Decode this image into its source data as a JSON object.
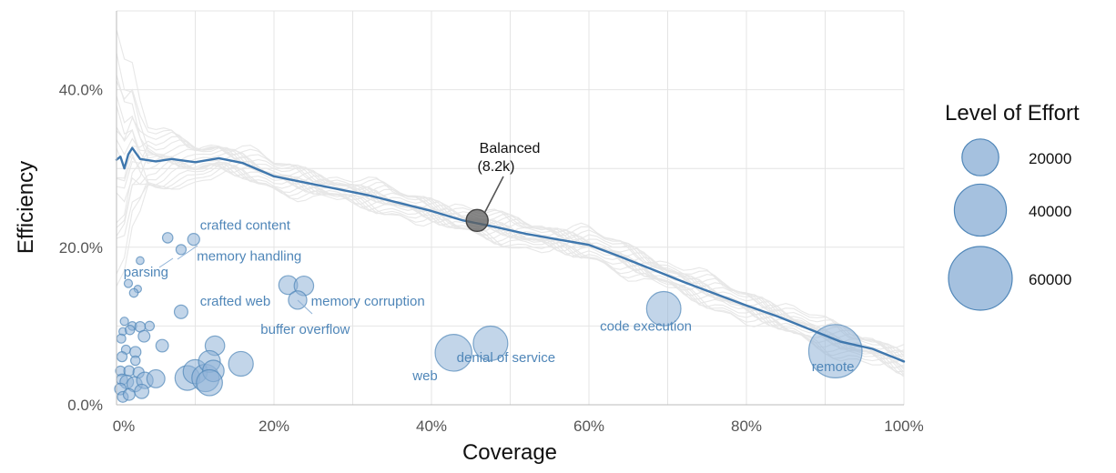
{
  "chart_data": {
    "type": "scatter",
    "title": "",
    "xlabel": "Coverage",
    "ylabel": "Efficiency",
    "xlim": [
      0,
      100
    ],
    "ylim": [
      0,
      50
    ],
    "x_ticks": [
      {
        "value": 0,
        "label": "0%"
      },
      {
        "value": 20,
        "label": "20%"
      },
      {
        "value": 40,
        "label": "40%"
      },
      {
        "value": 60,
        "label": "60%"
      },
      {
        "value": 80,
        "label": "80%"
      },
      {
        "value": 100,
        "label": "100%"
      }
    ],
    "y_ticks": [
      {
        "value": 0,
        "label": "0.0%"
      },
      {
        "value": 20,
        "label": "20.0%"
      },
      {
        "value": 40,
        "label": "40.0%"
      }
    ],
    "grid": true,
    "colors": {
      "bubble": "#4f86b8",
      "bubble_fill": "#8fb2d7",
      "line": "#3f77ad",
      "background_lines": "#e7e7e7",
      "grid": "#e4e4e4",
      "callout_marker": "#5f5f5f"
    },
    "legend": {
      "title": "Level of Effort",
      "position": "right",
      "items": [
        {
          "label": "20000",
          "value": 20000
        },
        {
          "label": "40000",
          "value": 40000
        },
        {
          "label": "60000",
          "value": 60000
        }
      ]
    },
    "main_series": {
      "x": [
        0,
        0.5,
        1,
        1.5,
        2,
        3,
        5,
        7,
        10,
        13,
        16,
        20,
        24,
        28,
        32,
        36,
        40,
        44,
        48,
        52,
        56,
        60,
        64,
        68,
        72,
        76,
        80,
        84,
        88,
        92,
        96,
        100
      ],
      "y": [
        31.1,
        31.5,
        30.0,
        31.8,
        32.6,
        31.2,
        30.9,
        31.2,
        30.8,
        31.3,
        30.7,
        29.0,
        28.2,
        27.4,
        26.6,
        25.6,
        24.6,
        23.4,
        22.6,
        21.7,
        21.0,
        20.3,
        18.8,
        17.2,
        15.6,
        14.1,
        12.6,
        11.2,
        9.6,
        8.0,
        7.1,
        5.5
      ]
    },
    "callout": {
      "label_line1": "Balanced",
      "label_line2": "(8.2k)",
      "x": 45.8,
      "y": 23.4,
      "effort": 8200
    },
    "bubbles": [
      {
        "x": 6.5,
        "y": 21.2,
        "effort": 1600,
        "label": ""
      },
      {
        "x": 8.2,
        "y": 19.7,
        "effort": 1500,
        "label": ""
      },
      {
        "x": 9.8,
        "y": 21.0,
        "effort": 2100,
        "label": "crafted content"
      },
      {
        "x": 3.0,
        "y": 18.3,
        "effort": 900,
        "label": ""
      },
      {
        "x": 1.5,
        "y": 15.4,
        "effort": 1000,
        "label": ""
      },
      {
        "x": 2.7,
        "y": 14.7,
        "effort": 800,
        "label": "parsing"
      },
      {
        "x": 2.2,
        "y": 14.2,
        "effort": 1100,
        "label": ""
      },
      {
        "x": 8.2,
        "y": 11.8,
        "effort": 2700,
        "label": ""
      },
      {
        "x": 21.8,
        "y": 15.2,
        "effort": 5200,
        "label": ""
      },
      {
        "x": 23.8,
        "y": 15.1,
        "effort": 5600,
        "label": "memory corruption"
      },
      {
        "x": 23.0,
        "y": 13.3,
        "effort": 5000,
        "label": "crafted web"
      },
      {
        "x": 69.5,
        "y": 12.2,
        "effort": 17400,
        "label": "code execution"
      },
      {
        "x": 1.0,
        "y": 10.6,
        "effort": 1000,
        "label": ""
      },
      {
        "x": 2.0,
        "y": 10.0,
        "effort": 1100,
        "label": ""
      },
      {
        "x": 3.0,
        "y": 9.9,
        "effort": 1600,
        "label": ""
      },
      {
        "x": 4.2,
        "y": 10.0,
        "effort": 1300,
        "label": ""
      },
      {
        "x": 0.8,
        "y": 9.3,
        "effort": 900,
        "label": ""
      },
      {
        "x": 1.7,
        "y": 9.5,
        "effort": 1300,
        "label": ""
      },
      {
        "x": 3.5,
        "y": 8.7,
        "effort": 2000,
        "label": ""
      },
      {
        "x": 0.6,
        "y": 8.4,
        "effort": 1200,
        "label": ""
      },
      {
        "x": 5.8,
        "y": 7.5,
        "effort": 2300,
        "label": ""
      },
      {
        "x": 12.5,
        "y": 7.5,
        "effort": 5600,
        "label": ""
      },
      {
        "x": 1.2,
        "y": 7.0,
        "effort": 1200,
        "label": ""
      },
      {
        "x": 2.4,
        "y": 6.7,
        "effort": 1800,
        "label": ""
      },
      {
        "x": 0.7,
        "y": 6.1,
        "effort": 1500,
        "label": ""
      },
      {
        "x": 2.4,
        "y": 5.6,
        "effort": 1300,
        "label": ""
      },
      {
        "x": 15.8,
        "y": 5.2,
        "effort": 9000,
        "label": ""
      },
      {
        "x": 47.5,
        "y": 7.8,
        "effort": 17600,
        "label": "denial of service"
      },
      {
        "x": 42.8,
        "y": 6.6,
        "effort": 20000,
        "label": "web"
      },
      {
        "x": 91.3,
        "y": 6.8,
        "effort": 42000,
        "label": "remote"
      },
      {
        "x": 0.5,
        "y": 4.3,
        "effort": 1400,
        "label": ""
      },
      {
        "x": 1.6,
        "y": 4.3,
        "effort": 1600,
        "label": ""
      },
      {
        "x": 2.8,
        "y": 4.1,
        "effort": 1800,
        "label": ""
      },
      {
        "x": 0.7,
        "y": 3.2,
        "effort": 1800,
        "label": ""
      },
      {
        "x": 1.3,
        "y": 2.9,
        "effort": 2700,
        "label": ""
      },
      {
        "x": 2.3,
        "y": 2.6,
        "effort": 3400,
        "label": ""
      },
      {
        "x": 3.6,
        "y": 3.1,
        "effort": 4000,
        "label": ""
      },
      {
        "x": 5.0,
        "y": 3.3,
        "effort": 4800,
        "label": ""
      },
      {
        "x": 9.0,
        "y": 3.4,
        "effort": 9000,
        "label": ""
      },
      {
        "x": 10.0,
        "y": 4.2,
        "effort": 8600,
        "label": ""
      },
      {
        "x": 11.3,
        "y": 3.4,
        "effort": 11000,
        "label": ""
      },
      {
        "x": 11.8,
        "y": 5.5,
        "effort": 7000,
        "label": ""
      },
      {
        "x": 12.3,
        "y": 4.3,
        "effort": 6800,
        "label": ""
      },
      {
        "x": 11.8,
        "y": 2.8,
        "effort": 10000,
        "label": ""
      },
      {
        "x": 0.5,
        "y": 2.0,
        "effort": 2000,
        "label": ""
      },
      {
        "x": 0.8,
        "y": 1.0,
        "effort": 1700,
        "label": ""
      },
      {
        "x": 1.6,
        "y": 1.3,
        "effort": 2000,
        "label": ""
      },
      {
        "x": 3.2,
        "y": 1.7,
        "effort": 3000,
        "label": ""
      }
    ],
    "annotations": [
      {
        "text": "crafted content",
        "x": 10.6,
        "y": 22.2
      },
      {
        "text": "memory handling",
        "x": 10.2,
        "y": 18.3
      },
      {
        "text": "parsing",
        "x": 0.9,
        "y": 16.3
      },
      {
        "text": "crafted web",
        "x": 10.6,
        "y": 12.6
      },
      {
        "text": "memory corruption",
        "x": 24.7,
        "y": 12.6
      },
      {
        "text": "buffer overflow",
        "x": 18.3,
        "y": 9.0
      },
      {
        "text": "code execution",
        "x": 61.4,
        "y": 9.4
      },
      {
        "text": "denial of service",
        "x": 43.2,
        "y": 5.4
      },
      {
        "text": "web",
        "x": 37.6,
        "y": 3.1
      },
      {
        "text": "remote",
        "x": 88.3,
        "y": 4.3
      }
    ]
  }
}
